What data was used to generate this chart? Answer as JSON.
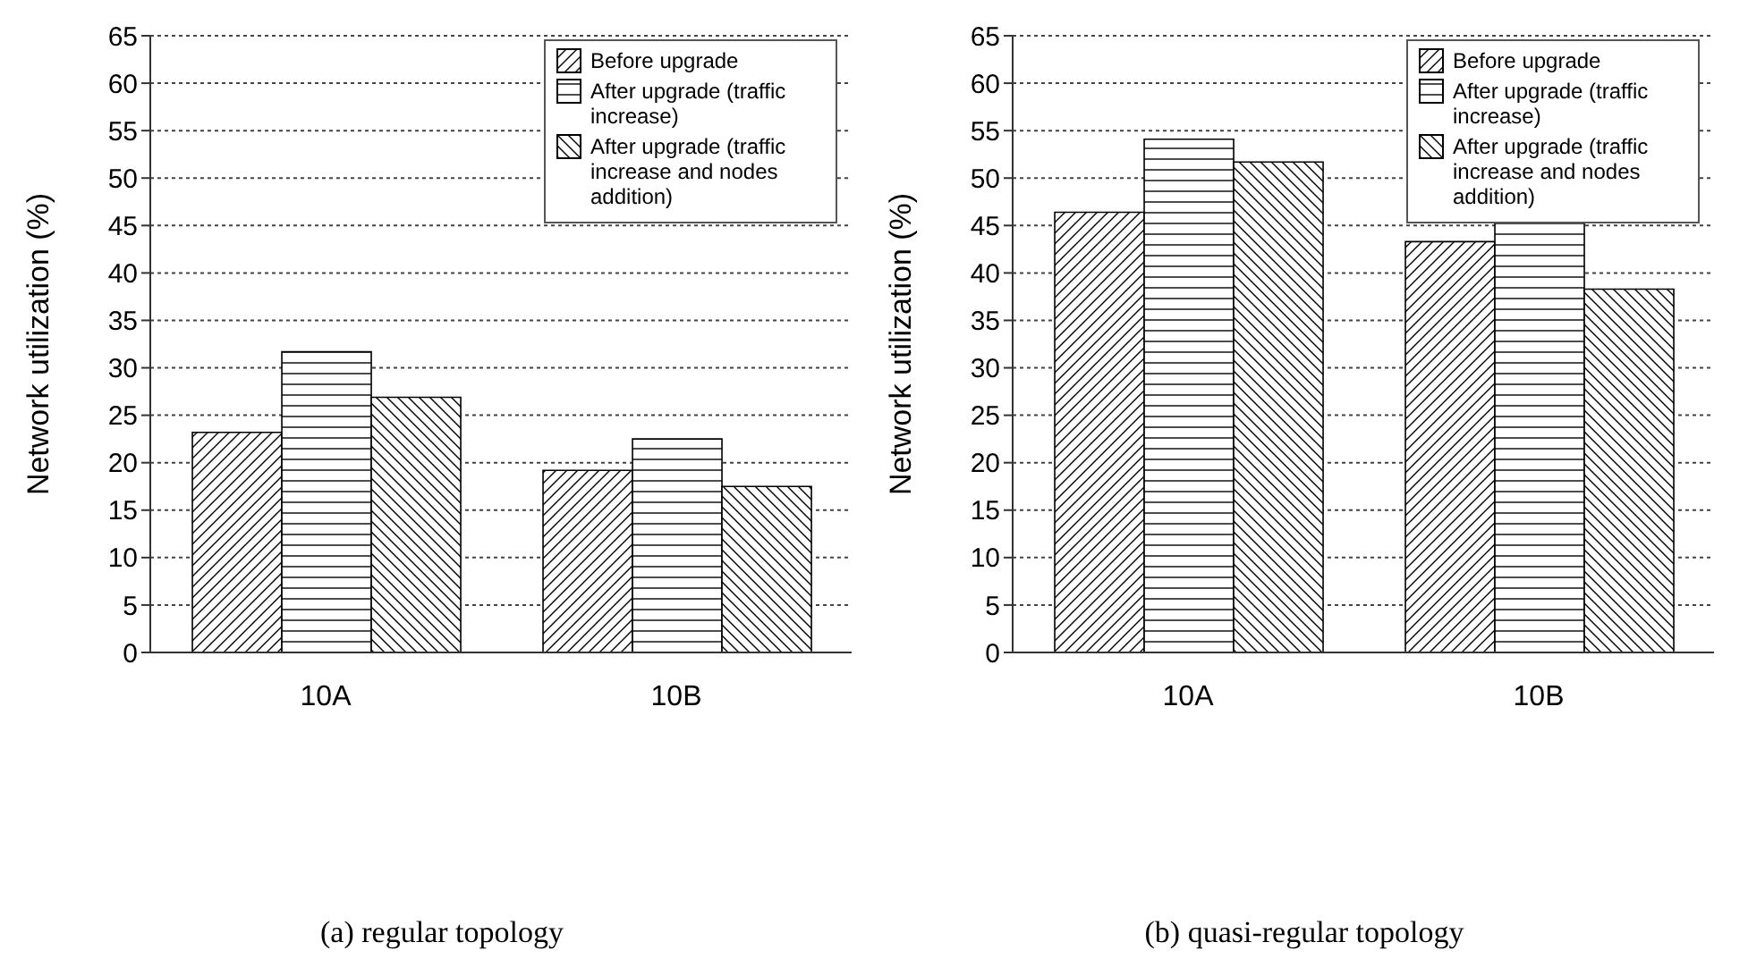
{
  "chart_data": [
    {
      "type": "bar",
      "title": "(a) regular topology",
      "ylabel": "Network utilization (%)",
      "categories": [
        "10A",
        "10B"
      ],
      "series": [
        {
          "name": "Before upgrade",
          "color": "#000000",
          "values": [
            23.2,
            19.2
          ]
        },
        {
          "name": "After upgrade (traffic increase)",
          "color": "#000000",
          "values": [
            31.7,
            22.5
          ]
        },
        {
          "name": "After upgrade (traffic increase and nodes addition)",
          "color": "#000000",
          "values": [
            26.9,
            17.5
          ]
        }
      ],
      "ylim": [
        0,
        65
      ],
      "yticks": [
        0,
        5,
        10,
        15,
        20,
        25,
        30,
        35,
        40,
        45,
        50,
        55,
        60,
        65
      ],
      "grid": "y",
      "legend": "top right"
    },
    {
      "type": "bar",
      "title": "(b) quasi-regular topology",
      "ylabel": "Network utilization (%)",
      "categories": [
        "10A",
        "10B"
      ],
      "series": [
        {
          "name": "Before upgrade",
          "color": "#000000",
          "values": [
            46.4,
            43.3
          ]
        },
        {
          "name": "After upgrade (traffic increase)",
          "color": "#000000",
          "values": [
            54.1,
            45.6
          ]
        },
        {
          "name": "After upgrade (traffic increase and nodes addition)",
          "color": "#000000",
          "values": [
            51.7,
            38.3
          ]
        }
      ],
      "ylim": [
        0,
        65
      ],
      "yticks": [
        0,
        5,
        10,
        15,
        20,
        25,
        30,
        35,
        40,
        45,
        50,
        55,
        60,
        65
      ],
      "grid": "y",
      "legend": "top right"
    }
  ]
}
